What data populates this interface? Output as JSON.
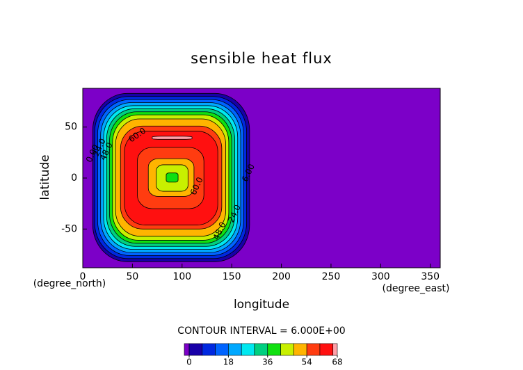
{
  "chart_data": {
    "type": "contour",
    "title": "sensible heat flux",
    "x_label": "longitude",
    "y_label": "latitude",
    "x_unit": "(degree_east)",
    "y_unit": "(degree_north)",
    "note": "CONTOUR INTERVAL = 6.000E+00",
    "xlim": [
      0,
      360
    ],
    "ylim": [
      -88,
      88
    ],
    "xticks": [
      0,
      50,
      100,
      150,
      200,
      250,
      300,
      350
    ],
    "yticks": [
      -50,
      0,
      50
    ],
    "background": "#7c00c8",
    "regions": [
      {
        "level": 0,
        "color": "#1800a8",
        "lon": [
          10,
          168
        ],
        "lat": [
          -82,
          83
        ]
      },
      {
        "level": 6,
        "color": "#0028e0",
        "lon": [
          12,
          165
        ],
        "lat": [
          -79,
          80
        ]
      },
      {
        "level": 12,
        "color": "#0064ff",
        "lon": [
          15,
          162
        ],
        "lat": [
          -76,
          77
        ]
      },
      {
        "level": 18,
        "color": "#00a8ff",
        "lon": [
          18,
          159
        ],
        "lat": [
          -73,
          74
        ]
      },
      {
        "level": 24,
        "color": "#00e8f0",
        "lon": [
          21,
          156
        ],
        "lat": [
          -70,
          71
        ]
      },
      {
        "level": 30,
        "color": "#00d080",
        "lon": [
          24,
          153
        ],
        "lat": [
          -67,
          68
        ]
      },
      {
        "level": 36,
        "color": "#10e010",
        "lon": [
          27,
          150
        ],
        "lat": [
          -64,
          65
        ]
      },
      {
        "level": 42,
        "color": "#c8f000",
        "lon": [
          30,
          147
        ],
        "lat": [
          -61,
          62
        ]
      },
      {
        "level": 48,
        "color": "#ffb400",
        "lon": [
          33,
          144
        ],
        "lat": [
          -57,
          58
        ]
      },
      {
        "level": 54,
        "color": "#ff3c10",
        "lon": [
          38,
          140
        ],
        "lat": [
          -50,
          51
        ]
      },
      {
        "level": 60,
        "color": "#ff1010",
        "lon": [
          42,
          136
        ],
        "lat": [
          -46,
          46
        ]
      },
      {
        "level": 66,
        "color": "#ffa0a8",
        "lon": [
          70,
          110
        ],
        "lat": [
          38,
          41
        ]
      },
      {
        "level": 54,
        "color": "#ff3c10",
        "lon": [
          55,
          122
        ],
        "lat": [
          -30,
          30
        ]
      },
      {
        "level": 48,
        "color": "#ffb400",
        "lon": [
          66,
          112
        ],
        "lat": [
          -18,
          19
        ]
      },
      {
        "level": 42,
        "color": "#c8f000",
        "lon": [
          74,
          106
        ],
        "lat": [
          -13,
          13
        ]
      },
      {
        "level": 36,
        "color": "#10e010",
        "lon": [
          84,
          96
        ],
        "lat": [
          -4,
          5
        ]
      }
    ],
    "contour_labels": [
      {
        "value": 0,
        "label": "0.00",
        "lon": 10,
        "lat": 24
      },
      {
        "value": 24,
        "label": "24.0",
        "lon": 17,
        "lat": 30
      },
      {
        "value": 48,
        "label": "48.0",
        "lon": 24,
        "lat": 26
      },
      {
        "value": 60,
        "label": "60.0",
        "lon": 55,
        "lat": 42
      },
      {
        "value": 60,
        "label": "60.0",
        "lon": 115,
        "lat": -8
      },
      {
        "value": 48,
        "label": "48.0",
        "lon": 138,
        "lat": -52
      },
      {
        "value": 24,
        "label": "24.0",
        "lon": 153,
        "lat": -35
      },
      {
        "value": 6,
        "label": "6.00",
        "lon": 167,
        "lat": 5
      }
    ],
    "cticks": [
      0,
      18,
      36,
      54,
      68
    ]
  }
}
